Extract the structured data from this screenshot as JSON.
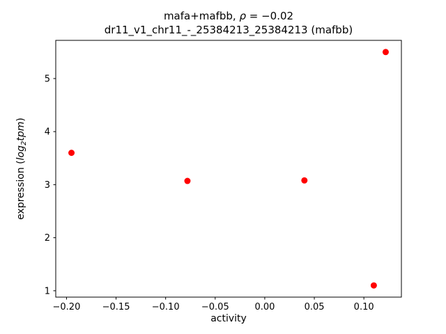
{
  "title": {
    "prefix": "mafa+mafbb, ",
    "rho": "ρ",
    "equals_value": " = −0.02",
    "line2": "dr11_v1_chr11_-_25384213_25384213 (mafbb)"
  },
  "ylabel_parts": {
    "prefix": "expression (",
    "log": "log",
    "sub": "2",
    "tpm": "tpm",
    "suffix": ")"
  },
  "chart_data": {
    "type": "scatter",
    "title": "mafa+mafbb, ρ = −0.02",
    "subtitle": "dr11_v1_chr11_-_25384213_25384213 (mafbb)",
    "xlabel": "activity",
    "ylabel": "expression (log2tpm)",
    "x": [
      -0.195,
      -0.078,
      0.04,
      0.11,
      0.122
    ],
    "y": [
      3.6,
      3.07,
      3.08,
      1.1,
      5.5
    ],
    "marker_color": "#ff0000",
    "marker_radius": 4.5,
    "xlim": [
      -0.21085,
      0.13785
    ],
    "ylim": [
      0.88,
      5.72
    ],
    "xticks": [
      -0.2,
      -0.15,
      -0.1,
      -0.05,
      0.0,
      0.05,
      0.1
    ],
    "xtick_labels": [
      "−0.20",
      "−0.15",
      "−0.10",
      "−0.05",
      "0.00",
      "0.05",
      "0.10"
    ],
    "yticks": [
      1,
      2,
      3,
      4,
      5
    ],
    "ytick_labels": [
      "1",
      "2",
      "3",
      "4",
      "5"
    ],
    "grid": false,
    "legend": "none",
    "axis_color": "#000000"
  }
}
